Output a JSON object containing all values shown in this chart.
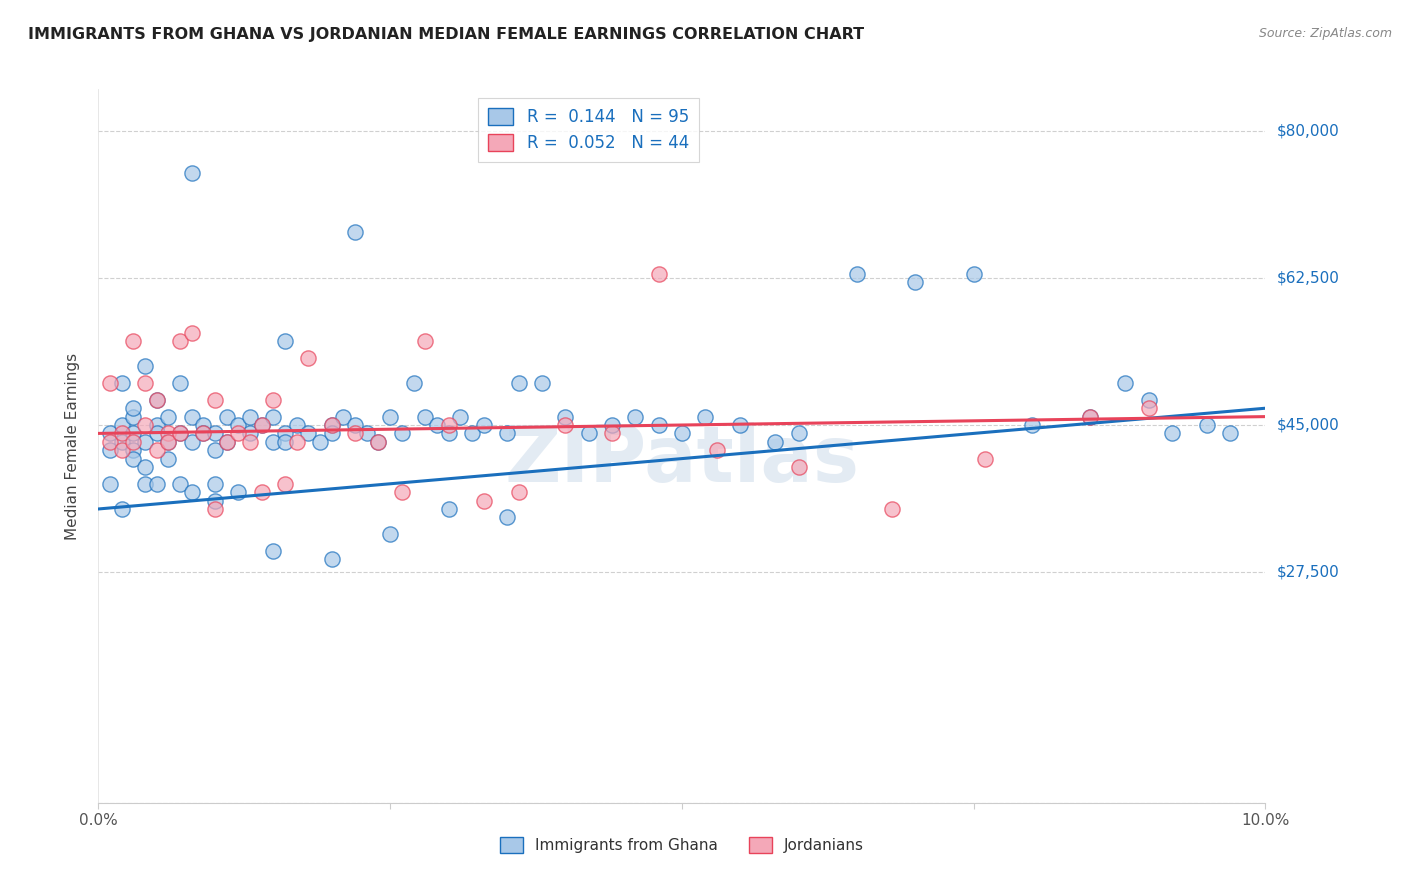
{
  "title": "IMMIGRANTS FROM GHANA VS JORDANIAN MEDIAN FEMALE EARNINGS CORRELATION CHART",
  "source": "Source: ZipAtlas.com",
  "ylabel": "Median Female Earnings",
  "ytick_labels": [
    "",
    "$27,500",
    "$45,000",
    "$62,500",
    "$80,000"
  ],
  "ytick_vals": [
    0,
    27500,
    45000,
    62500,
    80000
  ],
  "xlim": [
    0.0,
    0.1
  ],
  "ylim": [
    0,
    85000
  ],
  "color_ghana": "#a8c8e8",
  "color_jordanian": "#f4a8b8",
  "trendline_ghana": "#1a6fbd",
  "trendline_jordanian": "#e8435a",
  "watermark": "ZIPatlas",
  "ghana_x": [
    0.001,
    0.001,
    0.001,
    0.002,
    0.002,
    0.002,
    0.002,
    0.003,
    0.003,
    0.003,
    0.003,
    0.003,
    0.004,
    0.004,
    0.004,
    0.004,
    0.005,
    0.005,
    0.005,
    0.005,
    0.006,
    0.006,
    0.006,
    0.007,
    0.007,
    0.007,
    0.008,
    0.008,
    0.008,
    0.009,
    0.009,
    0.01,
    0.01,
    0.01,
    0.011,
    0.011,
    0.012,
    0.012,
    0.013,
    0.013,
    0.014,
    0.015,
    0.015,
    0.016,
    0.016,
    0.017,
    0.018,
    0.019,
    0.02,
    0.02,
    0.021,
    0.022,
    0.023,
    0.024,
    0.025,
    0.026,
    0.027,
    0.028,
    0.029,
    0.03,
    0.031,
    0.032,
    0.033,
    0.035,
    0.036,
    0.038,
    0.04,
    0.042,
    0.044,
    0.046,
    0.048,
    0.05,
    0.052,
    0.055,
    0.058,
    0.06,
    0.065,
    0.07,
    0.075,
    0.08,
    0.085,
    0.088,
    0.09,
    0.092,
    0.095,
    0.097,
    0.015,
    0.02,
    0.025,
    0.03,
    0.035,
    0.022,
    0.016,
    0.01,
    0.008
  ],
  "ghana_y": [
    38000,
    42000,
    44000,
    35000,
    45000,
    43000,
    50000,
    46000,
    42000,
    44000,
    41000,
    47000,
    43000,
    40000,
    52000,
    38000,
    45000,
    38000,
    44000,
    48000,
    41000,
    46000,
    43000,
    50000,
    38000,
    44000,
    46000,
    43000,
    37000,
    45000,
    44000,
    42000,
    38000,
    44000,
    46000,
    43000,
    37000,
    45000,
    44000,
    46000,
    45000,
    43000,
    46000,
    44000,
    43000,
    45000,
    44000,
    43000,
    45000,
    44000,
    46000,
    45000,
    44000,
    43000,
    46000,
    44000,
    50000,
    46000,
    45000,
    44000,
    46000,
    44000,
    45000,
    44000,
    50000,
    50000,
    46000,
    44000,
    45000,
    46000,
    45000,
    44000,
    46000,
    45000,
    43000,
    44000,
    63000,
    62000,
    63000,
    45000,
    46000,
    50000,
    48000,
    44000,
    45000,
    44000,
    30000,
    29000,
    32000,
    35000,
    34000,
    68000,
    55000,
    36000,
    75000
  ],
  "jordanian_x": [
    0.001,
    0.001,
    0.002,
    0.002,
    0.003,
    0.003,
    0.004,
    0.004,
    0.005,
    0.005,
    0.006,
    0.006,
    0.007,
    0.007,
    0.008,
    0.009,
    0.01,
    0.011,
    0.012,
    0.013,
    0.014,
    0.015,
    0.016,
    0.017,
    0.018,
    0.02,
    0.022,
    0.024,
    0.026,
    0.028,
    0.03,
    0.033,
    0.036,
    0.04,
    0.044,
    0.048,
    0.053,
    0.06,
    0.068,
    0.076,
    0.085,
    0.09,
    0.014,
    0.01
  ],
  "jordanian_y": [
    43000,
    50000,
    44000,
    42000,
    43000,
    55000,
    50000,
    45000,
    42000,
    48000,
    44000,
    43000,
    55000,
    44000,
    56000,
    44000,
    48000,
    43000,
    44000,
    43000,
    45000,
    48000,
    38000,
    43000,
    53000,
    45000,
    44000,
    43000,
    37000,
    55000,
    45000,
    36000,
    37000,
    45000,
    44000,
    63000,
    42000,
    40000,
    35000,
    41000,
    46000,
    47000,
    37000,
    35000
  ]
}
